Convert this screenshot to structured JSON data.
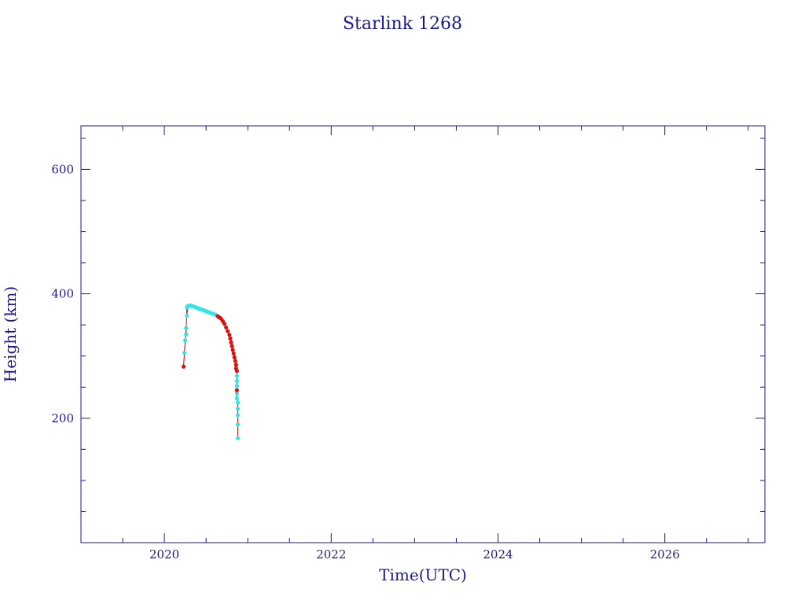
{
  "chart_data": {
    "type": "scatter",
    "title": "Starlink 1268",
    "xlabel": "Time(UTC)",
    "ylabel": "Height (km)",
    "xlim": [
      2019.0,
      2027.2
    ],
    "ylim": [
      0,
      670
    ],
    "x_ticks": [
      "2020",
      "2022",
      "2024",
      "2026"
    ],
    "y_ticks": [
      "200",
      "400",
      "600"
    ],
    "grid": false,
    "colors": {
      "axis": "#1a1a8c",
      "trace": "#cc0000",
      "cyan": "#33e6e6",
      "red": "#dd1111"
    },
    "series": [
      {
        "color": "cyan",
        "x": [
          2020.24,
          2020.25,
          2020.26,
          2020.26,
          2020.27,
          2020.27,
          2020.28,
          2020.29,
          2020.3,
          2020.32,
          2020.34,
          2020.36,
          2020.38,
          2020.4,
          2020.42,
          2020.44,
          2020.46,
          2020.48,
          2020.5,
          2020.52,
          2020.54,
          2020.56,
          2020.58,
          2020.6,
          2020.62,
          2020.87,
          2020.87,
          2020.87,
          2020.87,
          2020.87,
          2020.88,
          2020.88,
          2020.88,
          2020.88,
          2020.88
        ],
        "y": [
          305,
          325,
          335,
          345,
          365,
          378,
          380,
          381,
          381,
          381,
          380,
          379,
          378,
          377,
          376,
          375,
          374,
          373,
          372,
          371,
          370,
          369,
          368,
          367,
          366,
          268,
          260,
          252,
          240,
          232,
          225,
          215,
          205,
          190,
          168
        ]
      },
      {
        "color": "red",
        "x": [
          2020.23,
          2020.64,
          2020.66,
          2020.68,
          2020.7,
          2020.72,
          2020.74,
          2020.76,
          2020.78,
          2020.79,
          2020.8,
          2020.81,
          2020.82,
          2020.83,
          2020.84,
          2020.85,
          2020.86,
          2020.86,
          2020.87,
          2020.87
        ],
        "y": [
          283,
          364,
          362,
          360,
          356,
          352,
          346,
          340,
          334,
          328,
          322,
          316,
          310,
          304,
          298,
          292,
          286,
          280,
          276,
          245
        ]
      }
    ]
  }
}
